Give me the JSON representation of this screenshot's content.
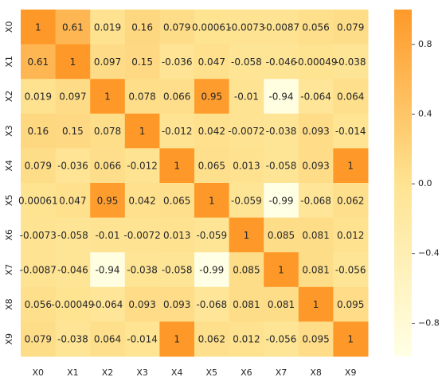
{
  "chart_data": {
    "type": "heatmap",
    "x_labels": [
      "X0",
      "X1",
      "X2",
      "X3",
      "X4",
      "X5",
      "X6",
      "X7",
      "X8",
      "X9"
    ],
    "y_labels": [
      "X0",
      "X1",
      "X2",
      "X3",
      "X4",
      "X5",
      "X6",
      "X7",
      "X8",
      "X9"
    ],
    "values": [
      [
        1,
        0.61,
        0.019,
        0.16,
        0.079,
        0.00061,
        -0.0073,
        -0.0087,
        0.056,
        0.079
      ],
      [
        0.61,
        1,
        0.097,
        0.15,
        -0.036,
        0.047,
        -0.058,
        -0.046,
        -0.00049,
        -0.038
      ],
      [
        0.019,
        0.097,
        1,
        0.078,
        0.066,
        0.95,
        -0.01,
        -0.94,
        -0.064,
        0.064
      ],
      [
        0.16,
        0.15,
        0.078,
        1,
        -0.012,
        0.042,
        -0.0072,
        -0.038,
        0.093,
        -0.014
      ],
      [
        0.079,
        -0.036,
        0.066,
        -0.012,
        1,
        0.065,
        0.013,
        -0.058,
        0.093,
        1
      ],
      [
        0.00061,
        0.047,
        0.95,
        0.042,
        0.065,
        1,
        -0.059,
        -0.99,
        -0.068,
        0.062
      ],
      [
        -0.0073,
        -0.058,
        -0.01,
        -0.0072,
        0.013,
        -0.059,
        1,
        0.085,
        0.081,
        0.012
      ],
      [
        -0.0087,
        -0.046,
        -0.94,
        -0.038,
        -0.058,
        -0.99,
        0.085,
        1,
        0.081,
        -0.056
      ],
      [
        0.056,
        -0.00049,
        -0.064,
        0.093,
        0.093,
        -0.068,
        0.081,
        0.081,
        1,
        0.095
      ],
      [
        0.079,
        -0.038,
        0.064,
        -0.014,
        1,
        0.062,
        0.012,
        -0.056,
        0.095,
        1
      ]
    ],
    "value_labels": [
      [
        "1",
        "0.61",
        "0.019",
        "0.16",
        "0.079",
        "0.00061",
        "-0.0073",
        "-0.0087",
        "0.056",
        "0.079"
      ],
      [
        "0.61",
        "1",
        "0.097",
        "0.15",
        "-0.036",
        "0.047",
        "-0.058",
        "-0.046",
        "-0.00049",
        "-0.038"
      ],
      [
        "0.019",
        "0.097",
        "1",
        "0.078",
        "0.066",
        "0.95",
        "-0.01",
        "-0.94",
        "-0.064",
        "0.064"
      ],
      [
        "0.16",
        "0.15",
        "0.078",
        "1",
        "-0.012",
        "0.042",
        "-0.0072",
        "-0.038",
        "0.093",
        "-0.014"
      ],
      [
        "0.079",
        "-0.036",
        "0.066",
        "-0.012",
        "1",
        "0.065",
        "0.013",
        "-0.058",
        "0.093",
        "1"
      ],
      [
        "0.00061",
        "0.047",
        "0.95",
        "0.042",
        "0.065",
        "1",
        "-0.059",
        "-0.99",
        "-0.068",
        "0.062"
      ],
      [
        "-0.0073",
        "-0.058",
        "-0.01",
        "-0.0072",
        "0.013",
        "-0.059",
        "1",
        "0.085",
        "0.081",
        "0.012"
      ],
      [
        "-0.0087",
        "-0.046",
        "-0.94",
        "-0.038",
        "-0.058",
        "-0.99",
        "0.085",
        "1",
        "0.081",
        "-0.056"
      ],
      [
        "0.056",
        "-0.00049",
        "-0.064",
        "0.093",
        "0.093",
        "-0.068",
        "0.081",
        "0.081",
        "1",
        "0.095"
      ],
      [
        "0.079",
        "-0.038",
        "0.064",
        "-0.014",
        "1",
        "0.062",
        "0.012",
        "-0.056",
        "0.095",
        "1"
      ]
    ],
    "colorbar": {
      "vmin": -0.99,
      "vmax": 1,
      "ticks": [
        0.8,
        0.4,
        0.0,
        -0.4,
        -0.8
      ],
      "tick_labels": [
        "0.8",
        "0.4",
        "0.0",
        "−0.4",
        "−0.8"
      ]
    },
    "colors": {
      "low": "#ffffe5",
      "mid": "#fee391",
      "high": "#fe9929"
    },
    "title": "",
    "xlabel": "",
    "ylabel": ""
  }
}
